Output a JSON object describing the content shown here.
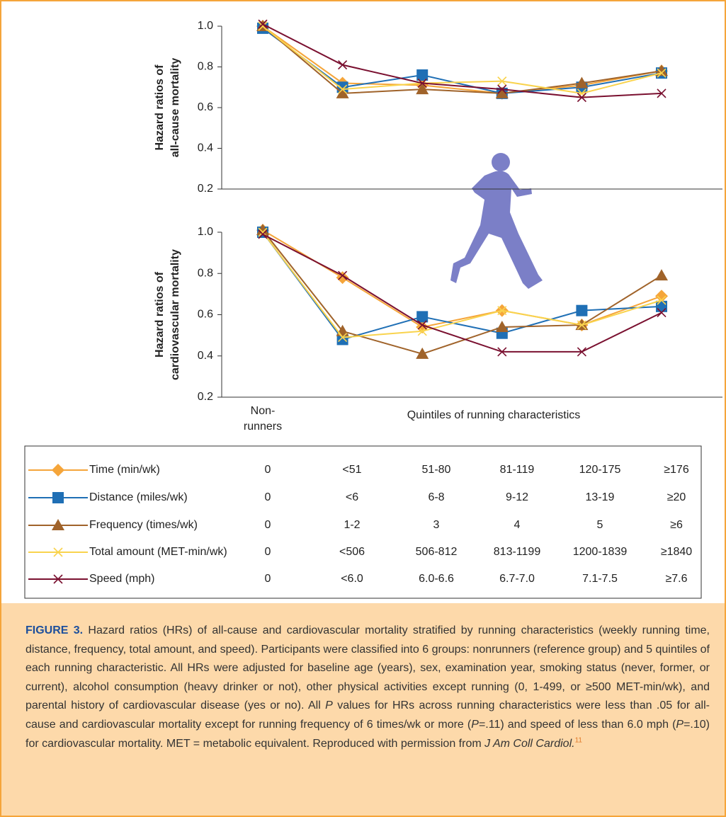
{
  "chart_data": [
    {
      "type": "line",
      "ylabel": [
        "Hazard ratios of",
        "all-cause mortality"
      ],
      "ylim": [
        0.2,
        1.0
      ],
      "yticks": [
        0.2,
        0.4,
        0.6,
        0.8,
        {
          "value": 1,
          "label": "1.0"
        }
      ],
      "series": [
        {
          "name": "Time (min/wk)",
          "color": "#f5a53a",
          "marker": "diamond",
          "values": [
            1.0,
            0.72,
            0.71,
            0.67,
            0.71,
            0.78
          ]
        },
        {
          "name": "Distance (miles/wk)",
          "color": "#1f6fb5",
          "marker": "square",
          "values": [
            0.99,
            0.7,
            0.76,
            0.67,
            0.7,
            0.77
          ]
        },
        {
          "name": "Frequency (times/wk)",
          "color": "#a0632a",
          "marker": "triangle",
          "values": [
            1.0,
            0.67,
            0.69,
            0.67,
            0.72,
            0.78
          ]
        },
        {
          "name": "Total amount (MET-min/wk)",
          "color": "#f9d34d",
          "marker": "x",
          "values": [
            1.0,
            0.69,
            0.72,
            0.73,
            0.67,
            0.77
          ]
        },
        {
          "name": "Speed (mph)",
          "color": "#7a1030",
          "marker": "x",
          "values": [
            1.01,
            0.81,
            0.72,
            0.69,
            0.65,
            0.67
          ]
        }
      ]
    },
    {
      "type": "line",
      "ylabel": [
        "Hazard ratios of",
        "cardiovascular mortality"
      ],
      "xlabel": "Quintiles of running characteristics",
      "categories": [
        "Non-runners",
        null,
        null,
        null,
        null,
        null
      ],
      "ylim": [
        0.2,
        1.0
      ],
      "yticks": [
        0.2,
        0.4,
        0.6,
        0.8,
        {
          "value": 1,
          "label": "1.0"
        }
      ],
      "series": [
        {
          "color": "#f5a53a",
          "marker": "diamond",
          "values": [
            1.01,
            0.78,
            0.54,
            0.62,
            0.55,
            0.69
          ]
        },
        {
          "color": "#1f6fb5",
          "marker": "square",
          "values": [
            1.0,
            0.48,
            0.59,
            0.51,
            0.62,
            0.64
          ]
        },
        {
          "color": "#a0632a",
          "marker": "triangle",
          "values": [
            1.01,
            0.52,
            0.41,
            0.54,
            0.55,
            0.79
          ]
        },
        {
          "color": "#f9d34d",
          "marker": "x",
          "values": [
            1.0,
            0.49,
            0.52,
            0.62,
            0.55,
            0.67
          ]
        },
        {
          "color": "#7a1030",
          "marker": "x",
          "values": [
            0.99,
            0.79,
            0.55,
            0.42,
            0.42,
            0.61
          ]
        }
      ]
    }
  ],
  "table": {
    "rows": [
      [
        "0",
        "<51",
        "51-80",
        "81-119",
        "120-175",
        "≥176"
      ],
      [
        "0",
        "<6",
        "6-8",
        "9-12",
        "13-19",
        "≥20"
      ],
      [
        "0",
        "1-2",
        "3",
        "4",
        "5",
        "≥6"
      ],
      [
        "0",
        "<506",
        "506-812",
        "813-1199",
        "1200-1839",
        "≥1840"
      ],
      [
        "0",
        "<6.0",
        "6.0-6.6",
        "6.7-7.0",
        "7.1-7.5",
        "≥7.6"
      ]
    ]
  },
  "caption": {
    "label": "FIGURE 3.",
    "runs": [
      {
        "text": " Hazard ratios (HRs) of all-cause and cardiovascular mortality stratified by running characteristics (weekly running time, distance, frequency, total amount, and speed). Participants were classified into 6 groups: nonrunners (reference group) and 5 quintiles of each running characteristic. All HRs were adjusted for baseline age (years), sex, examination year, smoking status (never, former, or current), alcohol consumption (heavy drinker or not), other physical activities except running (0, 1-499, or ≥500 MET-min/wk), and parental history of cardiovascular disease (yes or no). All "
      },
      {
        "text": "P",
        "style": "italic"
      },
      {
        "text": " values for HRs across running characteristics were less than .05 for all-cause and cardiovascular mortality except for running frequency of 6 times/wk or more ("
      },
      {
        "text": "P",
        "style": "italic"
      },
      {
        "text": "=.11) and speed of less than 6.0 mph ("
      },
      {
        "text": "P",
        "style": "italic"
      },
      {
        "text": "=.10) for cardiovascular mortality. MET = metabolic equivalent. Reproduced with permission from "
      },
      {
        "text": "J Am Coll Cardiol.",
        "style": "italic"
      },
      {
        "text": "11",
        "style": "sup"
      }
    ]
  }
}
